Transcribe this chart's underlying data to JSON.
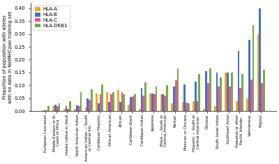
{
  "categories": [
    "European Caucasian",
    "Middle Eastern or N.\nCoast of Africa",
    "Alaska native or Aleut",
    "North American Indian",
    "American Indian — South\nor Central Am.",
    "Caribbean Hispanic",
    "African American",
    "African",
    "Caribbean black",
    "Caribbean Indian",
    "Japanese",
    "Black — South or\nCentral American",
    "Korean",
    "Mexican or Chicano",
    "Hispanic — South or\nCentral American",
    "Chinese",
    "South Asian Indian",
    "Southeast Asian",
    "Hawaiian or other\nPacific Islander",
    "Vietnamese",
    "Filipino"
  ],
  "HLA_A": [
    0.005,
    0.02,
    0.01,
    0.01,
    0.015,
    0.07,
    0.075,
    0.082,
    0.025,
    0.008,
    0.068,
    0.065,
    0.03,
    0.036,
    0.04,
    0.01,
    0.02,
    0.15,
    0.04,
    0.05,
    0.3
  ],
  "HLA_B": [
    0.005,
    0.025,
    0.02,
    0.022,
    0.05,
    0.03,
    0.035,
    0.035,
    0.055,
    0.09,
    0.07,
    0.065,
    0.095,
    0.105,
    0.115,
    0.155,
    0.15,
    0.15,
    0.235,
    0.278,
    0.4
  ],
  "HLA_C": [
    0.005,
    0.02,
    0.01,
    0.02,
    0.045,
    0.065,
    0.065,
    0.075,
    0.058,
    0.06,
    0.065,
    0.06,
    0.12,
    0.034,
    0.04,
    0.11,
    0.095,
    0.095,
    0.09,
    0.122,
    0.11
  ],
  "HLA_DRB1": [
    0.02,
    0.03,
    0.04,
    0.075,
    0.085,
    0.105,
    0.075,
    0.065,
    0.065,
    0.112,
    0.095,
    0.1,
    0.165,
    0.032,
    0.145,
    0.165,
    0.13,
    0.15,
    0.145,
    0.335,
    0.16
  ],
  "colors": {
    "HLA_A": "#F5A623",
    "HLA_B": "#4472C4",
    "HLA_C": "#E8559A",
    "HLA_DRB1": "#70AD47"
  },
  "series_labels": [
    "HLA-A",
    "HLA-B",
    "HLA-C",
    "HLA-DRB1"
  ],
  "ylabel": "Proportion of population with alleles\nwith no data in NetMHCpan training set",
  "ylim": [
    0.0,
    0.42
  ],
  "yticks": [
    0.0,
    0.05,
    0.1,
    0.15,
    0.2,
    0.25,
    0.3,
    0.35,
    0.4
  ],
  "figsize": [
    4.0,
    2.35
  ],
  "dpi": 100,
  "bar_width": 0.18,
  "xlabel_fontsize": 3.8,
  "ylabel_fontsize": 4.8,
  "ytick_fontsize": 5.0,
  "legend_fontsize": 5.0
}
